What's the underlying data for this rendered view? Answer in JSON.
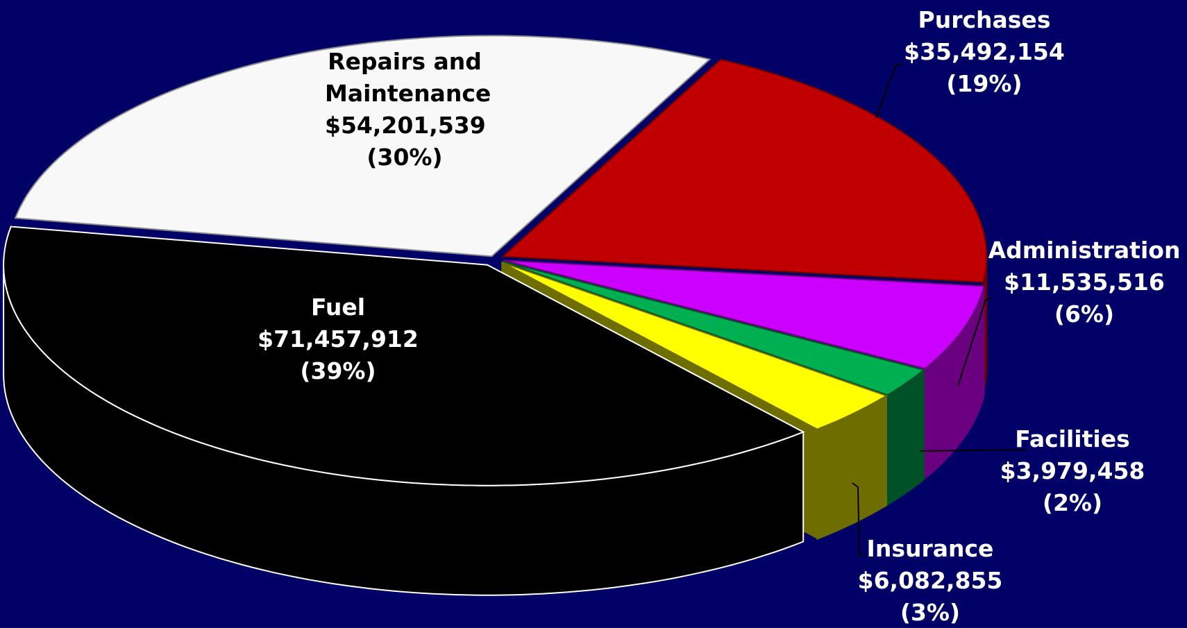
{
  "chart_data": {
    "type": "pie",
    "three_d": true,
    "categories": [
      "Repairs and Maintenance",
      "Purchases",
      "Administration",
      "Facilities",
      "Insurance",
      "Fuel"
    ],
    "values": [
      54201539,
      35492154,
      11535516,
      3979458,
      6082855,
      71457912
    ],
    "value_labels": [
      "$54,201,539",
      "$35,492,154",
      "$11,535,516",
      "$3,979,458",
      "$6,082,855",
      "$71,457,912"
    ],
    "percents": [
      30,
      19,
      6,
      2,
      3,
      39
    ],
    "percent_labels": [
      "(30%)",
      "(19%)",
      "(6%)",
      "(2%)",
      "(3%)",
      "(39%)"
    ],
    "colors": [
      "#f8f8f8",
      "#c00000",
      "#cc00ff",
      "#00b050",
      "#ffff00",
      "#000000"
    ],
    "side_colors": [
      "#8c8c8c",
      "#6e0000",
      "#6a0080",
      "#005028",
      "#6e6e00",
      "#000000"
    ]
  }
}
